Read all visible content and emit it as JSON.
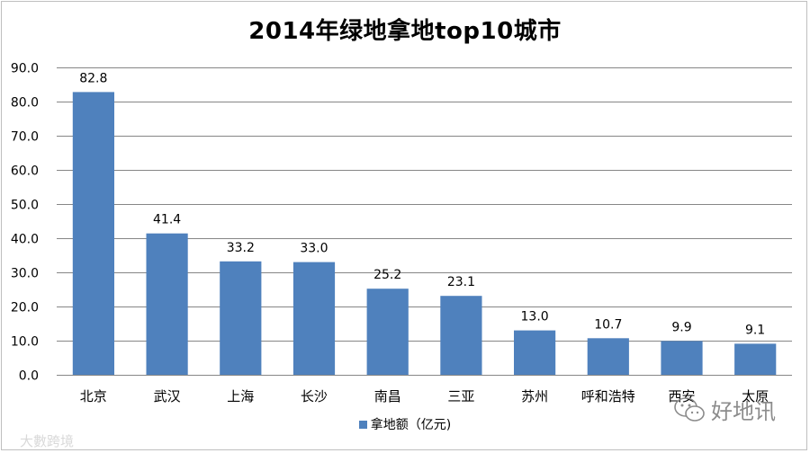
{
  "chart_data": {
    "type": "bar",
    "title": "2014年绿地拿地top10城市",
    "categories": [
      "北京",
      "武汉",
      "上海",
      "长沙",
      "南昌",
      "三亚",
      "苏州",
      "呼和浩特",
      "西安",
      "太原"
    ],
    "series": [
      {
        "name": "拿地额（亿元)",
        "values": [
          82.8,
          41.4,
          33.2,
          33.0,
          25.2,
          23.1,
          13.0,
          10.7,
          9.9,
          9.1
        ],
        "labels": [
          "82.8",
          "41.4",
          "33.2",
          "33.0",
          "25.2",
          "23.1",
          "13.0",
          "10.7",
          "9.9",
          "9.1"
        ]
      }
    ],
    "ylim": [
      0,
      90
    ],
    "yticks": [
      "0.0",
      "10.0",
      "20.0",
      "30.0",
      "40.0",
      "50.0",
      "60.0",
      "70.0",
      "80.0",
      "90.0"
    ],
    "grid": true,
    "legend_position": "bottom",
    "bar_color": "#4f81bd",
    "grid_color": "#868686"
  },
  "watermarks": {
    "left": "大數跨境",
    "right": "好地讯"
  }
}
